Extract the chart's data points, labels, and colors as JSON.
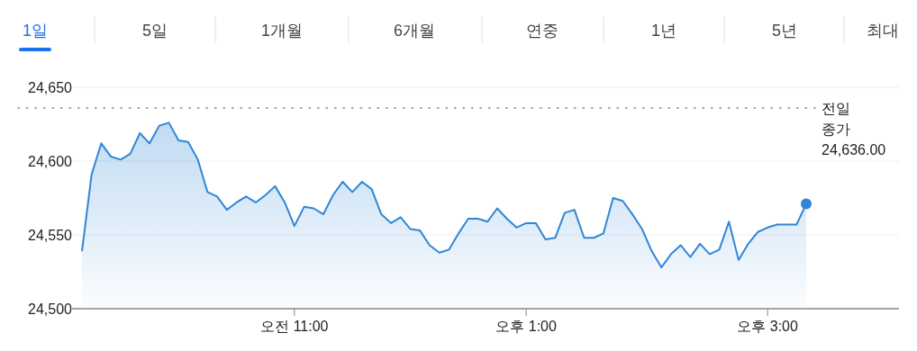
{
  "chart_data": {
    "type": "area",
    "annotations": [
      "1일",
      "5일",
      "1개월",
      "6개월",
      "연중",
      "1년",
      "5년",
      "최대"
    ],
    "categories": [
      null,
      null,
      null,
      null,
      null,
      null,
      null,
      null,
      null,
      null,
      null,
      null,
      null,
      null,
      null,
      null,
      null,
      null,
      null,
      null,
      null,
      null,
      "오전 11:00",
      null,
      null,
      null,
      null,
      null,
      null,
      null,
      null,
      null,
      null,
      null,
      null,
      null,
      null,
      null,
      null,
      null,
      null,
      null,
      null,
      null,
      null,
      null,
      "오후 1:00",
      null,
      null,
      null,
      null,
      null,
      null,
      null,
      null,
      null,
      null,
      null,
      null,
      null,
      null,
      null,
      null,
      null,
      null,
      null,
      null,
      null,
      null,
      null,
      null,
      "오후 3:00",
      null,
      null,
      null,
      null
    ],
    "series": [
      {
        "color": "#2f86d6",
        "values": [
          24539,
          24591,
          24612,
          24603,
          24601,
          24605,
          24619,
          24612,
          24624,
          24626,
          24614,
          24613,
          24601,
          24579,
          24576,
          24567,
          24572,
          24576,
          24572,
          24577,
          24583,
          24572,
          24556,
          24569,
          24568,
          24564,
          24577,
          24586,
          24579,
          24586,
          24581,
          24564,
          24558,
          24562,
          24554,
          24553,
          24543,
          24538,
          24540,
          24551,
          24561,
          24561,
          24559,
          24568,
          24561,
          24555,
          24558,
          24558,
          24547,
          24548,
          24565,
          24567,
          24548,
          24548,
          24551,
          24575,
          24573,
          24564,
          24554,
          24539,
          24528,
          24537,
          24543,
          24535,
          24544,
          24537,
          24540,
          24559,
          24533,
          24544,
          24552,
          24555,
          24557,
          24557,
          24557,
          24571
        ]
      }
    ],
    "ylim": [
      24500,
      24650
    ],
    "yticks": [
      {
        "value": 24500,
        "label": "24,500"
      },
      {
        "value": 24550,
        "label": "24,550"
      },
      {
        "value": 24600,
        "label": "24,600"
      },
      {
        "value": 24650,
        "label": "24,650"
      }
    ],
    "ref_lines": [
      {
        "axis": "y",
        "value": 24636,
        "label": "전일 종가 24,636.00",
        "color": "#888888",
        "line_style": "dotted"
      }
    ],
    "grid": "y"
  }
}
